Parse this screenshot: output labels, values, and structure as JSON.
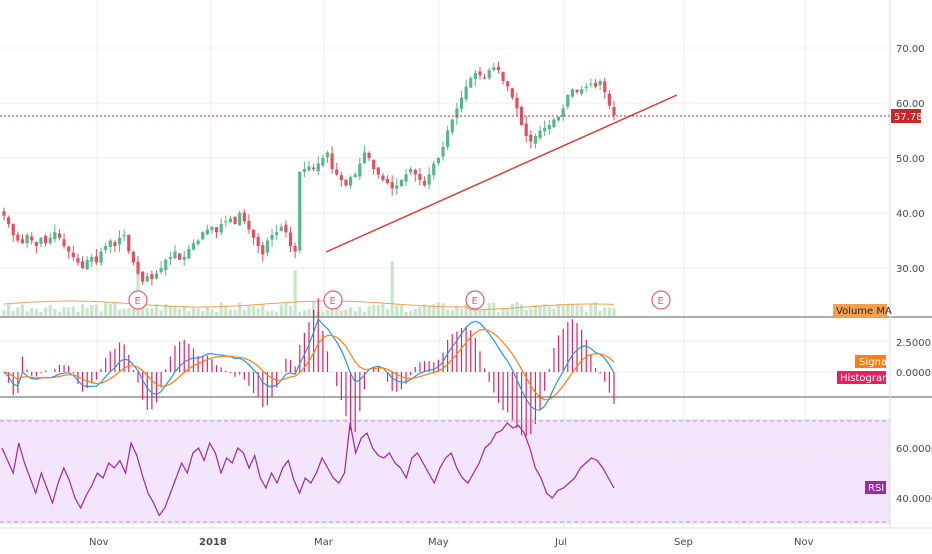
{
  "colors": {
    "up": "#53b987",
    "down": "#eb4d5c",
    "trendline": "#e53935",
    "price_line": "#c62828",
    "macd": "#2196f3",
    "signal": "#ff7f0e",
    "histogram": "#e91e63",
    "rsi": "#9c27b0",
    "rsi_fill": "#f3e5fb",
    "volume_ma": "#f0a050",
    "volume": "#c8e6c9",
    "earnings": "#ee5a6a"
  },
  "chart_data": {
    "type": "candlestick",
    "x_tick_labels": [
      "Nov",
      "2018",
      "Mar",
      "May",
      "Jul",
      "Sep",
      "Nov"
    ],
    "price_panel": {
      "y_ticks": [
        "70.00",
        "60.00",
        "50.00",
        "40.00",
        "30.00"
      ],
      "y_range": [
        21.5,
        79.5
      ],
      "current_price": "57.78",
      "closes": [
        39.5,
        38,
        36,
        35,
        34.5,
        36,
        35,
        34,
        35.5,
        34.5,
        35.5,
        36.5,
        35.5,
        34,
        33,
        32,
        31,
        30,
        31.5,
        32,
        31,
        33,
        34,
        35,
        34,
        35.5,
        36,
        33,
        31,
        29,
        27.5,
        28.5,
        28,
        29,
        30,
        31.5,
        32,
        33,
        31.5,
        32,
        33.5,
        34.5,
        35,
        36.5,
        37,
        37.5,
        36.5,
        38,
        38.5,
        39,
        38,
        40,
        38.5,
        37,
        35.5,
        34,
        32.5,
        35,
        36,
        36.5,
        37.5,
        36.5,
        34,
        33,
        47.5,
        48,
        48.5,
        48,
        49,
        50,
        51,
        48,
        47,
        46,
        45,
        46.5,
        47,
        49,
        51,
        50,
        48,
        47,
        46,
        45.5,
        44.5,
        45,
        46,
        47,
        48,
        47,
        46,
        45,
        47,
        49,
        50,
        52,
        55,
        57,
        59,
        61,
        63,
        64.5,
        65.5,
        65,
        64.5,
        66,
        66.5,
        66,
        64,
        63,
        61,
        59,
        56,
        54,
        53,
        54,
        55,
        55.5,
        56,
        57,
        57.5,
        59,
        61.5,
        62.5,
        62,
        62.5,
        63,
        63.5,
        63,
        64,
        62,
        59.5,
        57.78
      ],
      "earnings_markers": [
        "E",
        "E",
        "E",
        "E"
      ]
    },
    "volume_panel": {
      "legend": "Volume MA"
    },
    "macd_panel": {
      "y_ticks": [
        "2.5000",
        "0.0000"
      ],
      "y_range": [
        -2.0,
        4.0
      ],
      "legend": [
        "Signal",
        "Histogram"
      ]
    },
    "rsi_panel": {
      "y_ticks": [
        "60.0000",
        "40.0000"
      ],
      "y_range": [
        26,
        85
      ],
      "bands": [
        70,
        30
      ],
      "legend": "RSI",
      "values": [
        60,
        55,
        50,
        62,
        54,
        48,
        42,
        50,
        44,
        38,
        46,
        52,
        47,
        40,
        36,
        41,
        45,
        50,
        48,
        54,
        52,
        55,
        50,
        62,
        57,
        49,
        42,
        38,
        33,
        36,
        42,
        48,
        54,
        50,
        58,
        60,
        55,
        62,
        58,
        50,
        56,
        54,
        60,
        58,
        52,
        57,
        48,
        44,
        50,
        46,
        52,
        55,
        47,
        42,
        48,
        46,
        50,
        56,
        52,
        48,
        46,
        50,
        70,
        58,
        64,
        66,
        60,
        57,
        56,
        58,
        54,
        52,
        48,
        56,
        58,
        54,
        50,
        46,
        52,
        56,
        58,
        52,
        48,
        46,
        50,
        54,
        60,
        62,
        66,
        67,
        70,
        68,
        69,
        66,
        60,
        52,
        48,
        42,
        40,
        43,
        44,
        46,
        48,
        52,
        54,
        56,
        55,
        52,
        48,
        44
      ]
    }
  }
}
